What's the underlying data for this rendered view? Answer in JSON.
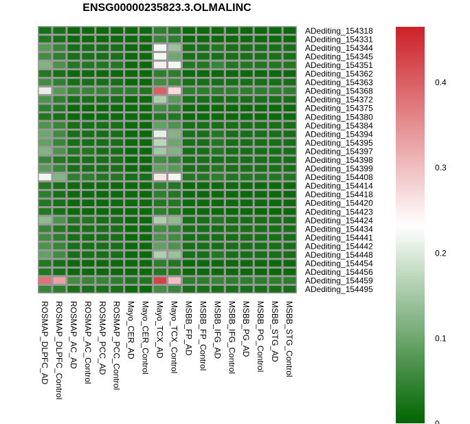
{
  "chart_data": {
    "type": "heatmap",
    "title": "ENSG00000235823.3.OLMALINC",
    "columns": [
      "ROSMAP_DLPFC_AD",
      "ROSMAP_DLPFC_Control",
      "ROSMAP_AC_AD",
      "ROSMAP_AC_Control",
      "ROSMAP_PCC_AD",
      "ROSMAP_PCC_Control",
      "Mayo_CER_AD",
      "Mayo_CER_Control",
      "Mayo_TCX_AD",
      "Mayo_TCX_Control",
      "MSBB_FP_AD",
      "MSBB_FP_Control",
      "MSBB_IFG_AD",
      "MSBB_IFG_Control",
      "MSBB_PG_AD",
      "MSBB_PG_Control",
      "MSBB_STG_AD",
      "MSBB_STG_Control"
    ],
    "rows": [
      "ADediting_154318",
      "ADediting_154331",
      "ADediting_154344",
      "ADediting_154345",
      "ADediting_154351",
      "ADediting_154362",
      "ADediting_154363",
      "ADediting_154368",
      "ADediting_154372",
      "ADediting_154375",
      "ADediting_154380",
      "ADediting_154384",
      "ADediting_154394",
      "ADediting_154395",
      "ADediting_154397",
      "ADediting_154398",
      "ADediting_154399",
      "ADediting_154408",
      "ADediting_154414",
      "ADediting_154418",
      "ADediting_154420",
      "ADediting_154423",
      "ADediting_154424",
      "ADediting_154434",
      "ADediting_154441",
      "ADediting_154442",
      "ADediting_154448",
      "ADediting_154454",
      "ADediting_154456",
      "ADediting_154459",
      "ADediting_154495"
    ],
    "values": [
      [
        0.02,
        0.02,
        0.01,
        0.01,
        0.01,
        0.01,
        0.01,
        0.01,
        0.04,
        0.03,
        0.01,
        0.01,
        0.01,
        0.01,
        0.01,
        0.01,
        0.01,
        0.01
      ],
      [
        0.03,
        0.02,
        0.01,
        0.01,
        0.01,
        0.01,
        0.01,
        0.01,
        0.05,
        0.04,
        0.01,
        0.01,
        0.01,
        0.01,
        0.01,
        0.01,
        0.01,
        0.01
      ],
      [
        0.08,
        0.05,
        0.02,
        0.02,
        0.02,
        0.02,
        0.01,
        0.01,
        0.22,
        0.14,
        0.02,
        0.02,
        0.03,
        0.02,
        0.02,
        0.02,
        0.02,
        0.02
      ],
      [
        0.06,
        0.04,
        0.02,
        0.02,
        0.02,
        0.02,
        0.01,
        0.01,
        0.22,
        0.1,
        0.02,
        0.02,
        0.02,
        0.02,
        0.02,
        0.02,
        0.02,
        0.02
      ],
      [
        0.12,
        0.07,
        0.03,
        0.03,
        0.03,
        0.03,
        0.01,
        0.01,
        0.25,
        0.22,
        0.03,
        0.03,
        0.05,
        0.03,
        0.03,
        0.03,
        0.03,
        0.03
      ],
      [
        0.03,
        0.02,
        0.01,
        0.01,
        0.01,
        0.01,
        0.01,
        0.01,
        0.04,
        0.04,
        0.01,
        0.01,
        0.01,
        0.01,
        0.01,
        0.01,
        0.01,
        0.01
      ],
      [
        0.06,
        0.04,
        0.02,
        0.02,
        0.02,
        0.02,
        0.01,
        0.01,
        0.06,
        0.05,
        0.02,
        0.02,
        0.02,
        0.02,
        0.02,
        0.02,
        0.02,
        0.02
      ],
      [
        0.21,
        0.08,
        0.05,
        0.05,
        0.05,
        0.04,
        0.04,
        0.03,
        0.4,
        0.27,
        0.04,
        0.04,
        0.04,
        0.04,
        0.04,
        0.04,
        0.04,
        0.04
      ],
      [
        0.07,
        0.04,
        0.02,
        0.02,
        0.02,
        0.02,
        0.01,
        0.01,
        0.16,
        0.08,
        0.02,
        0.02,
        0.02,
        0.02,
        0.02,
        0.02,
        0.02,
        0.02
      ],
      [
        0.04,
        0.03,
        0.01,
        0.01,
        0.01,
        0.01,
        0.01,
        0.01,
        0.06,
        0.05,
        0.01,
        0.01,
        0.01,
        0.01,
        0.01,
        0.01,
        0.01,
        0.01
      ],
      [
        0.03,
        0.02,
        0.01,
        0.01,
        0.01,
        0.01,
        0.01,
        0.01,
        0.03,
        0.03,
        0.01,
        0.01,
        0.01,
        0.01,
        0.01,
        0.01,
        0.01,
        0.01
      ],
      [
        0.07,
        0.05,
        0.02,
        0.02,
        0.02,
        0.02,
        0.01,
        0.01,
        0.09,
        0.07,
        0.02,
        0.02,
        0.02,
        0.02,
        0.02,
        0.02,
        0.02,
        0.02
      ],
      [
        0.1,
        0.06,
        0.02,
        0.02,
        0.02,
        0.02,
        0.01,
        0.01,
        0.21,
        0.12,
        0.02,
        0.02,
        0.03,
        0.02,
        0.02,
        0.02,
        0.02,
        0.02
      ],
      [
        0.09,
        0.05,
        0.02,
        0.02,
        0.02,
        0.02,
        0.01,
        0.01,
        0.17,
        0.1,
        0.02,
        0.02,
        0.03,
        0.02,
        0.02,
        0.02,
        0.02,
        0.02
      ],
      [
        0.12,
        0.07,
        0.03,
        0.03,
        0.02,
        0.02,
        0.01,
        0.01,
        0.15,
        0.12,
        0.02,
        0.02,
        0.03,
        0.02,
        0.02,
        0.02,
        0.02,
        0.02
      ],
      [
        0.05,
        0.03,
        0.02,
        0.02,
        0.02,
        0.02,
        0.01,
        0.01,
        0.06,
        0.05,
        0.02,
        0.02,
        0.02,
        0.02,
        0.02,
        0.02,
        0.02,
        0.02
      ],
      [
        0.08,
        0.05,
        0.02,
        0.02,
        0.02,
        0.02,
        0.01,
        0.01,
        0.09,
        0.08,
        0.02,
        0.02,
        0.03,
        0.02,
        0.02,
        0.02,
        0.02,
        0.02
      ],
      [
        0.22,
        0.12,
        0.04,
        0.04,
        0.03,
        0.03,
        0.02,
        0.02,
        0.26,
        0.22,
        0.03,
        0.03,
        0.04,
        0.03,
        0.03,
        0.03,
        0.03,
        0.03
      ],
      [
        0.03,
        0.02,
        0.01,
        0.01,
        0.01,
        0.01,
        0.01,
        0.01,
        0.04,
        0.03,
        0.01,
        0.01,
        0.01,
        0.01,
        0.01,
        0.01,
        0.01,
        0.01
      ],
      [
        0.04,
        0.02,
        0.01,
        0.01,
        0.01,
        0.01,
        0.01,
        0.01,
        0.04,
        0.03,
        0.01,
        0.01,
        0.01,
        0.01,
        0.01,
        0.01,
        0.01,
        0.01
      ],
      [
        0.03,
        0.02,
        0.01,
        0.01,
        0.01,
        0.01,
        0.01,
        0.01,
        0.03,
        0.03,
        0.01,
        0.01,
        0.01,
        0.01,
        0.01,
        0.01,
        0.01,
        0.01
      ],
      [
        0.03,
        0.02,
        0.01,
        0.01,
        0.01,
        0.01,
        0.01,
        0.01,
        0.04,
        0.03,
        0.01,
        0.01,
        0.01,
        0.01,
        0.01,
        0.01,
        0.01,
        0.01
      ],
      [
        0.13,
        0.07,
        0.03,
        0.03,
        0.02,
        0.02,
        0.01,
        0.01,
        0.16,
        0.13,
        0.02,
        0.02,
        0.03,
        0.02,
        0.02,
        0.02,
        0.02,
        0.02
      ],
      [
        0.05,
        0.03,
        0.02,
        0.02,
        0.02,
        0.02,
        0.01,
        0.01,
        0.06,
        0.05,
        0.02,
        0.02,
        0.02,
        0.02,
        0.02,
        0.02,
        0.02,
        0.02
      ],
      [
        0.06,
        0.04,
        0.02,
        0.02,
        0.02,
        0.02,
        0.01,
        0.01,
        0.07,
        0.06,
        0.02,
        0.02,
        0.02,
        0.02,
        0.02,
        0.02,
        0.02,
        0.02
      ],
      [
        0.07,
        0.05,
        0.02,
        0.02,
        0.02,
        0.02,
        0.01,
        0.01,
        0.09,
        0.07,
        0.02,
        0.02,
        0.02,
        0.02,
        0.02,
        0.02,
        0.02,
        0.02
      ],
      [
        0.09,
        0.06,
        0.02,
        0.02,
        0.02,
        0.02,
        0.01,
        0.01,
        0.16,
        0.14,
        0.02,
        0.02,
        0.03,
        0.02,
        0.02,
        0.02,
        0.02,
        0.02
      ],
      [
        0.03,
        0.02,
        0.01,
        0.01,
        0.01,
        0.01,
        0.01,
        0.01,
        0.04,
        0.03,
        0.01,
        0.01,
        0.01,
        0.01,
        0.01,
        0.01,
        0.01,
        0.01
      ],
      [
        0.03,
        0.02,
        0.01,
        0.01,
        0.01,
        0.01,
        0.01,
        0.01,
        0.03,
        0.03,
        0.01,
        0.01,
        0.01,
        0.01,
        0.01,
        0.01,
        0.01,
        0.01
      ],
      [
        0.38,
        0.33,
        0.06,
        0.05,
        0.05,
        0.04,
        0.03,
        0.03,
        0.43,
        0.3,
        0.04,
        0.04,
        0.05,
        0.04,
        0.04,
        0.04,
        0.04,
        0.04
      ],
      [
        0.05,
        0.04,
        0.02,
        0.02,
        0.02,
        0.02,
        0.01,
        0.01,
        0.06,
        0.05,
        0.02,
        0.02,
        0.02,
        0.02,
        0.02,
        0.02,
        0.02,
        0.02
      ]
    ],
    "color_scale": {
      "min": 0,
      "max": 0.465,
      "mid": 0.232,
      "low_color": "#006400",
      "mid_color": "#ffffff",
      "high_color": "#cc2127",
      "ticks": [
        0,
        0.1,
        0.2,
        0.3,
        0.4
      ],
      "tick_labels": [
        "0",
        "0.1",
        "0.2",
        "0.3",
        "0.4"
      ]
    },
    "grid_color": "#999999",
    "legend_position": "right"
  }
}
